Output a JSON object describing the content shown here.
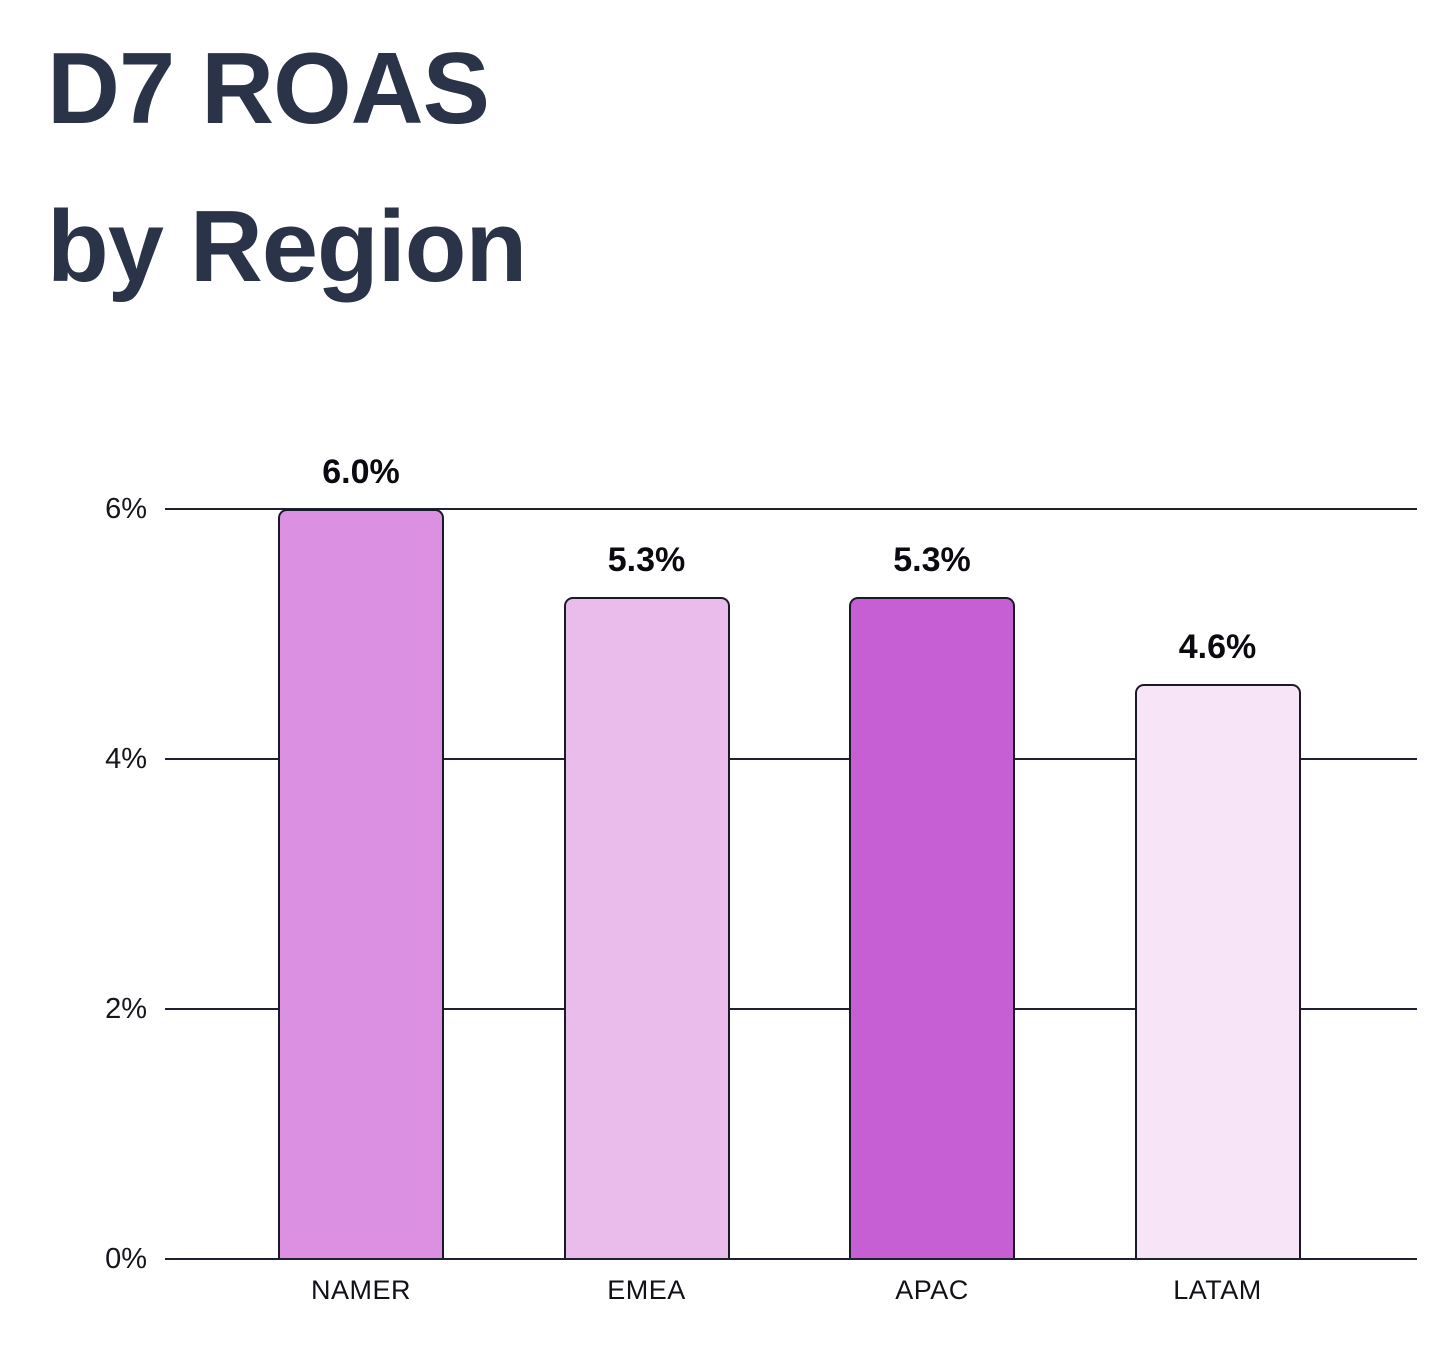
{
  "title": {
    "line1": "D7 ROAS",
    "line2": "by Region"
  },
  "chart_data": {
    "type": "bar",
    "title": "D7 ROAS by Region",
    "categories": [
      "NAMER",
      "EMEA",
      "APAC",
      "LATAM"
    ],
    "values": [
      6.0,
      5.3,
      5.3,
      4.6
    ],
    "value_labels": [
      "6.0%",
      "5.3%",
      "5.3%",
      "4.6%"
    ],
    "unit": "%",
    "ylim": [
      0,
      6
    ],
    "y_ticks": [
      {
        "value": 0,
        "label": "0%"
      },
      {
        "value": 2,
        "label": "2%"
      },
      {
        "value": 4,
        "label": "4%"
      },
      {
        "value": 6,
        "label": "6%"
      }
    ],
    "grid": "horizontal",
    "legend": "none",
    "bar_colors": [
      "#DC90E1",
      "#EABCEC",
      "#C75FD4",
      "#F7E4F6"
    ],
    "bar_border_color": "#1A1A26",
    "gridline_color": "#1E2230",
    "value_label_color": "#0A0A10",
    "axis_text_color": "#15151B",
    "title_color": "#2A3348",
    "background": "#FFFFFF"
  }
}
